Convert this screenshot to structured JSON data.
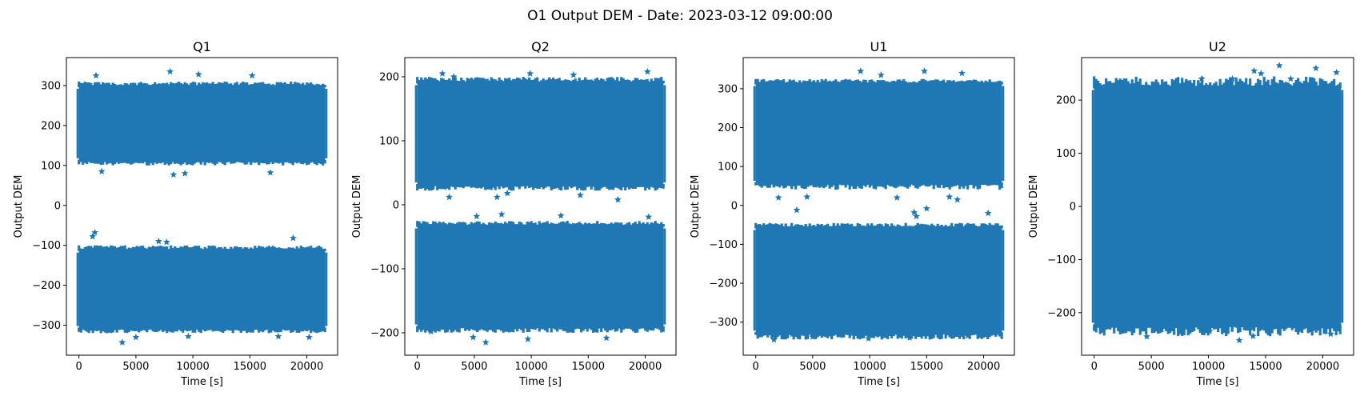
{
  "suptitle": "O1 Output DEM - Date: 2023-03-12 09:00:00",
  "marker": "star",
  "series_color": "#1f77b4",
  "chart_data": [
    {
      "type": "scatter",
      "title": "Q1",
      "xlabel": "Time [s]",
      "ylabel": "Output DEM",
      "xlim": [
        -1100,
        22700
      ],
      "ylim": [
        -375,
        370
      ],
      "xticks": [
        0,
        5000,
        10000,
        15000,
        20000
      ],
      "yticks": [
        -300,
        -200,
        -100,
        0,
        100,
        200,
        300
      ],
      "x_range": [
        0,
        21600
      ],
      "bands": [
        {
          "low": 100,
          "high": 310,
          "core_low": 110,
          "core_high": 300
        },
        {
          "low": -320,
          "high": -100,
          "core_low": -310,
          "core_high": -110
        }
      ],
      "outliers": [
        [
          1500,
          325
        ],
        [
          8000,
          335
        ],
        [
          10500,
          328
        ],
        [
          15200,
          325
        ],
        [
          2000,
          85
        ],
        [
          8300,
          77
        ],
        [
          9300,
          80
        ],
        [
          16800,
          82
        ],
        [
          1400,
          -68
        ],
        [
          1200,
          -78
        ],
        [
          7000,
          -90
        ],
        [
          7700,
          -92
        ],
        [
          18800,
          -82
        ],
        [
          3800,
          -343
        ],
        [
          5000,
          -330
        ],
        [
          9600,
          -328
        ],
        [
          17500,
          -328
        ],
        [
          20200,
          -330
        ]
      ]
    },
    {
      "type": "scatter",
      "title": "Q2",
      "xlabel": "Time [s]",
      "ylabel": "Output DEM",
      "xlim": [
        -1100,
        22700
      ],
      "ylim": [
        -235,
        230
      ],
      "xticks": [
        0,
        5000,
        10000,
        15000,
        20000
      ],
      "yticks": [
        -200,
        -100,
        0,
        100,
        200
      ],
      "x_range": [
        0,
        21600
      ],
      "bands": [
        {
          "low": 22,
          "high": 200,
          "core_low": 30,
          "core_high": 192
        },
        {
          "low": -200,
          "high": -25,
          "core_low": -192,
          "core_high": -32
        }
      ],
      "outliers": [
        [
          2200,
          205
        ],
        [
          3200,
          200
        ],
        [
          9900,
          205
        ],
        [
          13700,
          203
        ],
        [
          20200,
          208
        ],
        [
          2800,
          12
        ],
        [
          7000,
          12
        ],
        [
          7900,
          18
        ],
        [
          14300,
          15
        ],
        [
          17600,
          8
        ],
        [
          5200,
          -18
        ],
        [
          7400,
          -15
        ],
        [
          12600,
          -17
        ],
        [
          20300,
          -19
        ],
        [
          1200,
          -198
        ],
        [
          4900,
          -207
        ],
        [
          6000,
          -215
        ],
        [
          9700,
          -210
        ],
        [
          16600,
          -208
        ]
      ]
    },
    {
      "type": "scatter",
      "title": "U1",
      "xlabel": "Time [s]",
      "ylabel": "Output DEM",
      "xlim": [
        -1100,
        22700
      ],
      "ylim": [
        -385,
        380
      ],
      "xticks": [
        0,
        5000,
        10000,
        15000,
        20000
      ],
      "yticks": [
        -300,
        -200,
        -100,
        0,
        100,
        200,
        300
      ],
      "x_range": [
        0,
        21600
      ],
      "bands": [
        {
          "low": 40,
          "high": 325,
          "core_low": 55,
          "core_high": 315
        },
        {
          "low": -345,
          "high": -45,
          "core_low": -330,
          "core_high": -55
        }
      ],
      "outliers": [
        [
          9200,
          345
        ],
        [
          11000,
          335
        ],
        [
          14800,
          345
        ],
        [
          18100,
          340
        ],
        [
          2000,
          20
        ],
        [
          4500,
          22
        ],
        [
          12400,
          20
        ],
        [
          17000,
          22
        ],
        [
          17700,
          15
        ],
        [
          3600,
          -12
        ],
        [
          13900,
          -18
        ],
        [
          14100,
          -28
        ],
        [
          15000,
          -8
        ],
        [
          20400,
          -20
        ],
        [
          1600,
          -345
        ],
        [
          5000,
          -338
        ],
        [
          9900,
          -342
        ],
        [
          13500,
          -340
        ],
        [
          18600,
          -335
        ]
      ]
    },
    {
      "type": "scatter",
      "title": "U2",
      "xlabel": "Time [s]",
      "ylabel": "Output DEM",
      "xlim": [
        -1100,
        22700
      ],
      "ylim": [
        -280,
        280
      ],
      "xticks": [
        0,
        5000,
        10000,
        15000,
        20000
      ],
      "yticks": [
        -200,
        -100,
        0,
        100,
        200
      ],
      "x_range": [
        0,
        21600
      ],
      "bands": [
        {
          "low": -245,
          "high": 245,
          "core_low": -225,
          "core_high": 225
        }
      ],
      "outliers": [
        [
          9400,
          240
        ],
        [
          12100,
          240
        ],
        [
          14000,
          255
        ],
        [
          14600,
          250
        ],
        [
          16200,
          265
        ],
        [
          17200,
          240
        ],
        [
          19400,
          260
        ],
        [
          21200,
          252
        ],
        [
          4600,
          -245
        ],
        [
          10100,
          -235
        ],
        [
          12700,
          -252
        ],
        [
          13900,
          -244
        ],
        [
          20700,
          -240
        ]
      ]
    }
  ]
}
